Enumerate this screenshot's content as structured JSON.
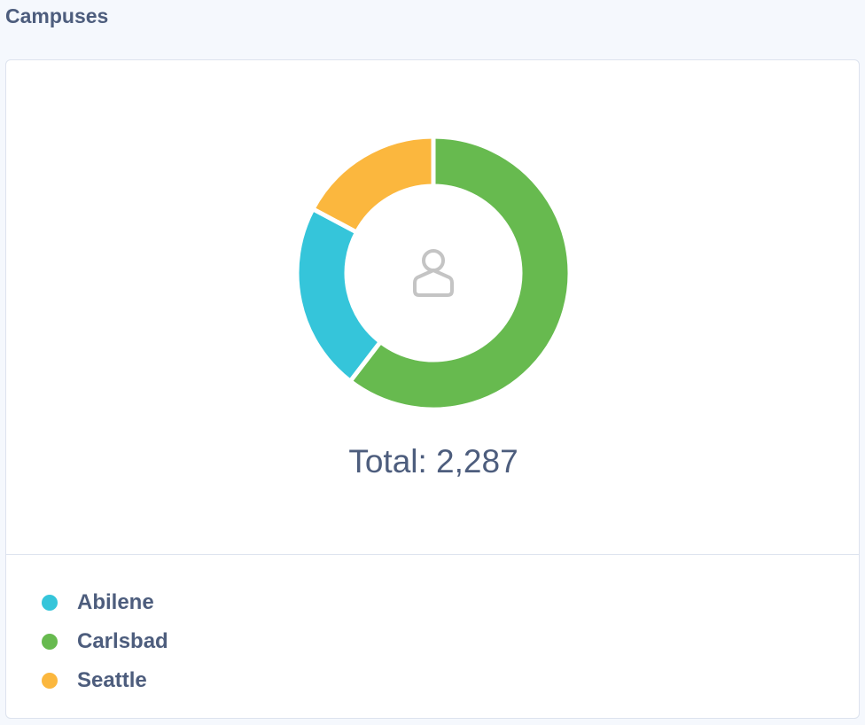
{
  "header": {
    "title": "Campuses"
  },
  "chart_data": {
    "type": "pie",
    "subtype": "donut",
    "title": "Campuses",
    "categories": [
      "Abilene",
      "Carlsbad",
      "Seattle"
    ],
    "values": [
      511,
      1382,
      394
    ],
    "colors": [
      "#35c5da",
      "#67ba4f",
      "#fbb73e"
    ],
    "draw_order": [
      "Carlsbad",
      "Abilene",
      "Seattle"
    ],
    "total_label": "Total: 2,287",
    "center_icon": "user-icon",
    "legend_position": "bottom-left"
  },
  "legend": [
    {
      "label": "Abilene",
      "color": "#35c5da"
    },
    {
      "label": "Carlsbad",
      "color": "#67ba4f"
    },
    {
      "label": "Seattle",
      "color": "#fbb73e"
    }
  ]
}
